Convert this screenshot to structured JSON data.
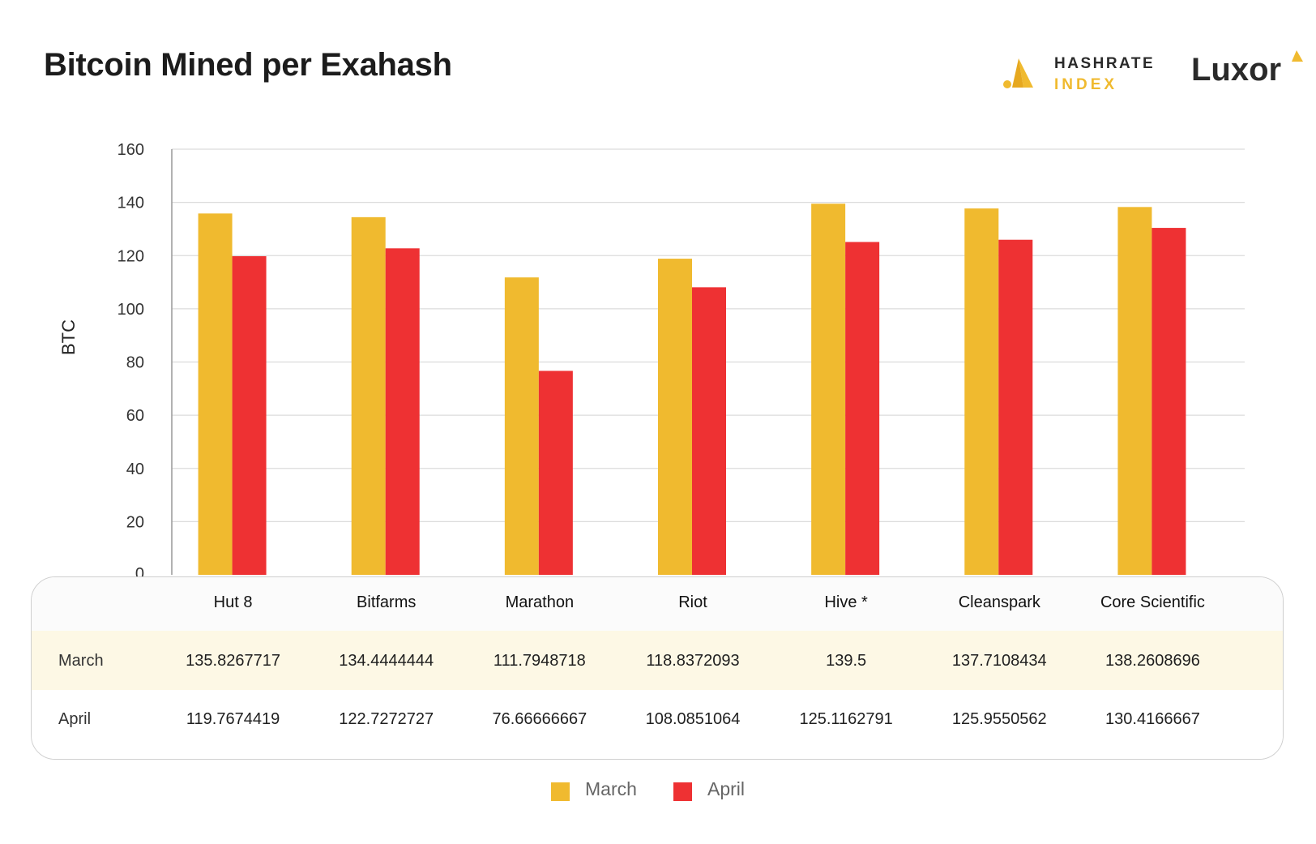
{
  "header": {
    "title": "Bitcoin Mined per Exahash",
    "brand_hashrate_line1": "HASHRATE",
    "brand_hashrate_line2": "INDEX",
    "brand_luxor": "Luxor"
  },
  "colors": {
    "march": "#f0ba2f",
    "april": "#ee3133",
    "grid": "#dcdcdc",
    "axis": "#999999"
  },
  "chart_data": {
    "type": "bar",
    "categories": [
      "Hut 8",
      "Bitfarms",
      "Marathon",
      "Riot",
      "Hive *",
      "Cleanspark",
      "Core Scientific"
    ],
    "series": [
      {
        "name": "March",
        "values": [
          135.8267717,
          134.4444444,
          111.7948718,
          118.8372093,
          139.5,
          137.7108434,
          138.2608696
        ]
      },
      {
        "name": "April",
        "values": [
          119.7674419,
          122.7272727,
          76.66666667,
          108.0851064,
          125.1162791,
          125.9550562,
          130.4166667
        ]
      }
    ],
    "ylabel": "BTC",
    "ylim": [
      0,
      160
    ],
    "yticks": [
      "0",
      "20",
      "40",
      "60",
      "80",
      "100",
      "120",
      "140",
      "160"
    ],
    "grid": true,
    "legend_position": "bottom"
  },
  "table": {
    "rows": [
      {
        "label": "March",
        "values": [
          "135.8267717",
          "134.4444444",
          "111.7948718",
          "118.8372093",
          "139.5",
          "137.7108434",
          "138.2608696"
        ]
      },
      {
        "label": "April",
        "values": [
          "119.7674419",
          "122.7272727",
          "76.66666667",
          "108.0851064",
          "125.1162791",
          "125.9550562",
          "130.4166667"
        ]
      }
    ]
  },
  "legend": {
    "items": [
      {
        "label": "March",
        "color_key": "march"
      },
      {
        "label": "April",
        "color_key": "april"
      }
    ]
  }
}
